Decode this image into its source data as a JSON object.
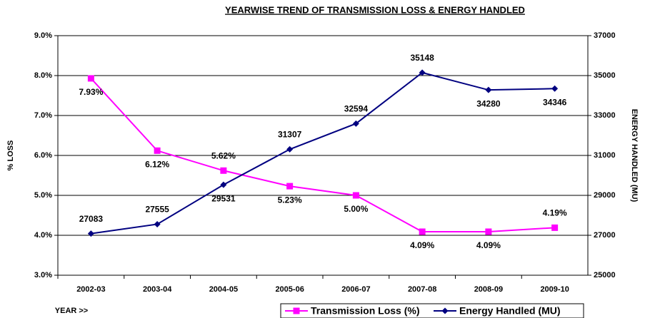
{
  "chart_data": {
    "type": "line",
    "title": "YEARWISE TREND OF TRANSMISSION LOSS & ENERGY HANDLED",
    "x_label": "YEAR >>",
    "y_label": "% LOSS",
    "y2_label": "ENERGY HANDLED (MU)",
    "categories": [
      "2002-03",
      "2003-04",
      "2004-05",
      "2005-06",
      "2006-07",
      "2007-08",
      "2008-09",
      "2009-10"
    ],
    "series": [
      {
        "name": "Transmission Loss (%)",
        "color": "#ff00ff",
        "marker": "square",
        "values": [
          7.93,
          6.12,
          5.62,
          5.23,
          5.0,
          4.09,
          4.09,
          4.19
        ],
        "value_labels": [
          "7.93%",
          "6.12%",
          "5.62%",
          "5.23%",
          "5.00%",
          "4.09%",
          "4.09%",
          "4.19%"
        ]
      },
      {
        "name": "Energy Handled (MU)",
        "color": "#000080",
        "marker": "diamond",
        "axis": "y2",
        "values": [
          27083,
          27555,
          29531,
          31307,
          32594,
          35148,
          34280,
          34346
        ]
      }
    ],
    "ylim": [
      3,
      9
    ],
    "yticks": [
      {
        "value": 3,
        "label": "3.0%"
      },
      {
        "value": 4,
        "label": "4.0%"
      },
      {
        "value": 5,
        "label": "5.0%"
      },
      {
        "value": 6,
        "label": "6.0%"
      },
      {
        "value": 7,
        "label": "7.0%"
      },
      {
        "value": 8,
        "label": "8.0%"
      },
      {
        "value": 9,
        "label": "9.0%"
      }
    ],
    "y2lim": [
      25000,
      37000
    ],
    "y2ticks": [
      25000,
      27000,
      29000,
      31000,
      33000,
      35000,
      37000
    ],
    "grid": true,
    "legend": "bottom-right"
  }
}
